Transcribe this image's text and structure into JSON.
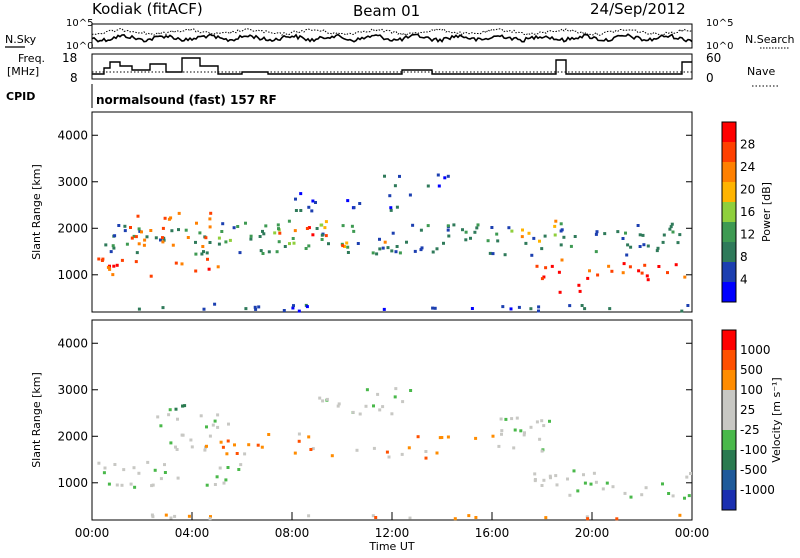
{
  "header": {
    "station": "Kodiak (fitACF)",
    "beam": "Beam 01",
    "date": "24/Sep/2012"
  },
  "top_panels": {
    "nsky_label": "N.Sky",
    "nsearch_label": "N.Search",
    "noise_ticks_left": [
      "10^5",
      "10^0"
    ],
    "noise_ticks_right": [
      "10^5",
      "10^0"
    ],
    "freq_label_1": "Freq.",
    "freq_label_2": "[MHz]",
    "freq_ticks": [
      "18",
      "8"
    ],
    "nave_label": "Nave",
    "nave_ticks": [
      "60",
      "0"
    ],
    "cpid_label": "CPID",
    "cpid_text": "normalsound (fast) 157 RF"
  },
  "colors": {
    "power": [
      "#0000ff",
      "#1c3fb0",
      "#2f7a5a",
      "#3e9a52",
      "#8fcf3c",
      "#ffb400",
      "#ff8000",
      "#ff4000",
      "#ff0000"
    ],
    "velocity": [
      "#1a2fb0",
      "#1f5a9a",
      "#2a7a50",
      "#49b84a",
      "#c8c8c4",
      "#c8c8c4",
      "#ff8c00",
      "#ff5000",
      "#ff0000"
    ],
    "ground_scatter": "#c8c8c4"
  },
  "chart_data": [
    {
      "type": "heatmap",
      "name": "power-panel",
      "ylabel": "Slant Range [km]",
      "yticks": [
        "1000",
        "2000",
        "3000",
        "4000"
      ],
      "ylim": [
        200,
        4500
      ],
      "colorbar_label": "Power [dB]",
      "colorbar_ticks": [
        "4",
        "8",
        "12",
        "16",
        "20",
        "24",
        "28"
      ],
      "regions": [
        {
          "t": [
            0.2,
            23.9
          ],
          "r": [
            1450,
            2150
          ],
          "level": 2
        },
        {
          "t": [
            0.2,
            5.5
          ],
          "r": [
            1000,
            1400
          ],
          "level": 7
        },
        {
          "t": [
            1.2,
            4.8
          ],
          "r": [
            1600,
            2400
          ],
          "level": 6
        },
        {
          "t": [
            5.0,
            9.5
          ],
          "r": [
            1700,
            2200
          ],
          "level": 4
        },
        {
          "t": [
            7.0,
            9.5
          ],
          "r": [
            1800,
            2100
          ],
          "level": 7
        },
        {
          "t": [
            9.5,
            12.0
          ],
          "r": [
            1550,
            1750
          ],
          "level": 6
        },
        {
          "t": [
            8.0,
            13.0
          ],
          "r": [
            2400,
            2800
          ],
          "level": 1
        },
        {
          "t": [
            11.5,
            14.5
          ],
          "r": [
            2900,
            3200
          ],
          "level": 1
        },
        {
          "t": [
            16.5,
            18.5
          ],
          "r": [
            1700,
            2200
          ],
          "level": 5
        },
        {
          "t": [
            17.5,
            23.9
          ],
          "r": [
            900,
            1350
          ],
          "level": 7
        },
        {
          "t": [
            18.3,
            19.8
          ],
          "r": [
            600,
            850
          ],
          "level": 8
        },
        {
          "t": [
            0.2,
            23.9
          ],
          "r": [
            250,
            400
          ],
          "level": 1
        }
      ]
    },
    {
      "type": "heatmap",
      "name": "velocity-panel",
      "xlabel": "Time UT",
      "ylabel": "Slant Range [km]",
      "yticks": [
        "1000",
        "2000",
        "3000",
        "4000"
      ],
      "xticks": [
        "00:00",
        "04:00",
        "08:00",
        "12:00",
        "16:00",
        "20:00",
        "00:00"
      ],
      "xlim": [
        0,
        24
      ],
      "ylim": [
        200,
        4500
      ],
      "colorbar_label": "Velocity [m s⁻¹]",
      "colorbar_ticks": [
        "1000",
        "500",
        "100",
        "25",
        "-25",
        "-100",
        "-500",
        "-1000"
      ],
      "regions": [
        {
          "t": [
            0.2,
            6.0
          ],
          "r": [
            900,
            1500
          ],
          "level": 4
        },
        {
          "t": [
            2.5,
            5.5
          ],
          "r": [
            1700,
            2500
          ],
          "level": 4
        },
        {
          "t": [
            4.5,
            9.0
          ],
          "r": [
            1600,
            2100
          ],
          "level": 6
        },
        {
          "t": [
            3.0,
            5.0
          ],
          "r": [
            2400,
            2700
          ],
          "level": 2
        },
        {
          "t": [
            9.0,
            14.0
          ],
          "r": [
            1550,
            1800
          ],
          "level": 6
        },
        {
          "t": [
            9.0,
            13.0
          ],
          "r": [
            2500,
            3100
          ],
          "level": 4
        },
        {
          "t": [
            15.5,
            18.5
          ],
          "r": [
            1700,
            2500
          ],
          "level": 4
        },
        {
          "t": [
            17.5,
            23.9
          ],
          "r": [
            700,
            1300
          ],
          "level": 4
        },
        {
          "t": [
            12.0,
            16.5
          ],
          "r": [
            1900,
            2050
          ],
          "level": 6
        },
        {
          "t": [
            0.2,
            23.9
          ],
          "r": [
            250,
            350
          ],
          "level": 6
        }
      ]
    }
  ]
}
